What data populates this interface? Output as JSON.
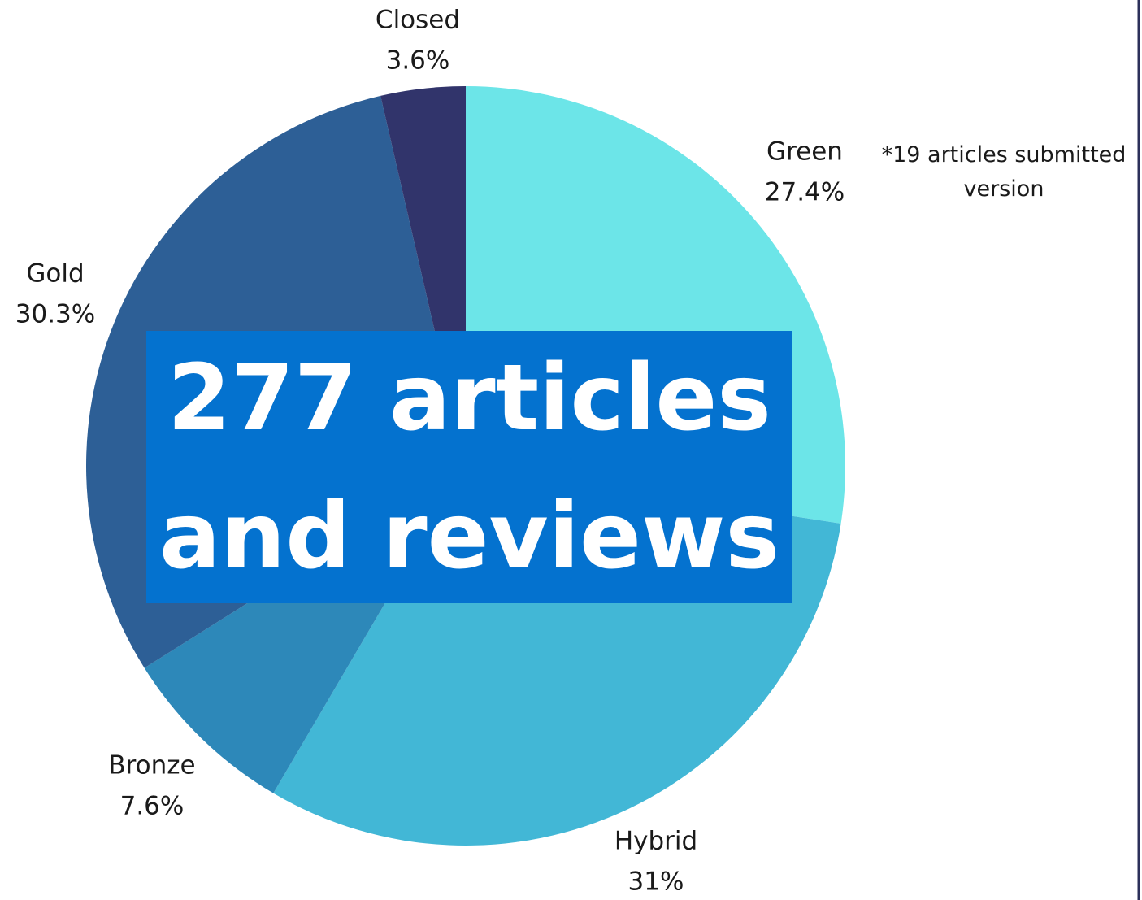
{
  "chart_data": {
    "type": "pie",
    "categories": [
      "Green",
      "Hybrid",
      "Bronze",
      "Gold",
      "Closed"
    ],
    "values": [
      27.4,
      31,
      7.6,
      30.3,
      3.6
    ],
    "value_labels": [
      "27.4%",
      "31%",
      "7.6%",
      "30.3%",
      "3.6%"
    ],
    "colors": [
      "#6ce5e8",
      "#42b7d6",
      "#2d88b9",
      "#2d5f96",
      "#31346b"
    ],
    "annotation": "*19  articles submitted version",
    "center_text": "277 articles and reviews"
  }
}
